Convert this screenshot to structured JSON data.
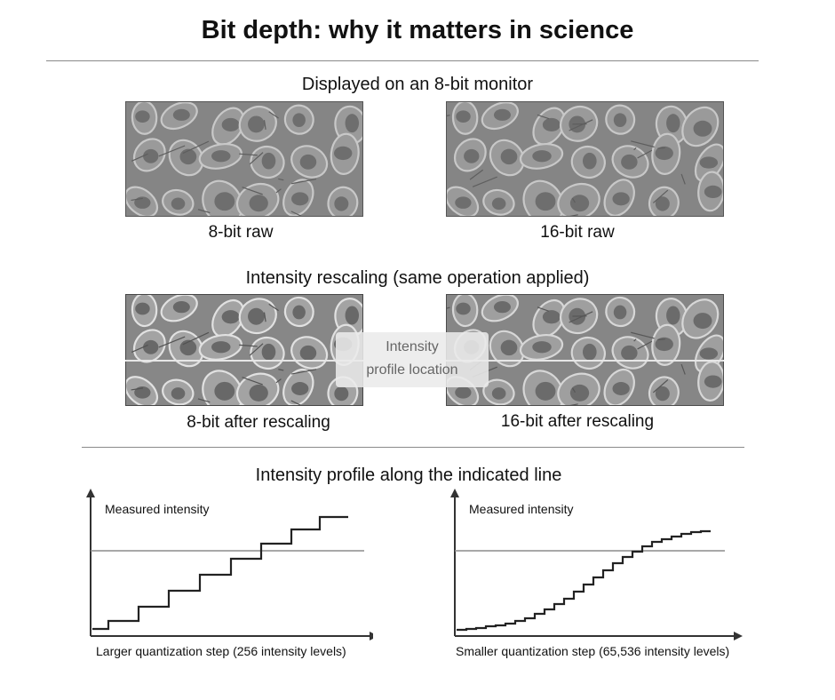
{
  "title": "Bit depth: why it matters in science",
  "monitor_section": {
    "label": "Displayed on an 8-bit monitor",
    "left_caption": "8-bit raw",
    "right_caption": "16-bit raw"
  },
  "rescale_section": {
    "label": "Intensity rescaling (same operation applied)",
    "left_caption": "8-bit after rescaling",
    "right_caption": "16-bit after rescaling",
    "overlay_line1": "Intensity",
    "overlay_line2": "profile location"
  },
  "profile_section": {
    "label": "Intensity profile along the indicated line",
    "left_ylabel": "Measured intensity",
    "right_ylabel": "Measured intensity",
    "left_xcaption": "Larger quantization step (256 intensity levels)",
    "right_xcaption": "Smaller quantization step (65,536 intensity levels)"
  },
  "colors": {
    "axis": "#333333",
    "step_line": "#222222",
    "reference_line": "#8c8c8c",
    "image_gray": "#8a8a8a"
  }
}
